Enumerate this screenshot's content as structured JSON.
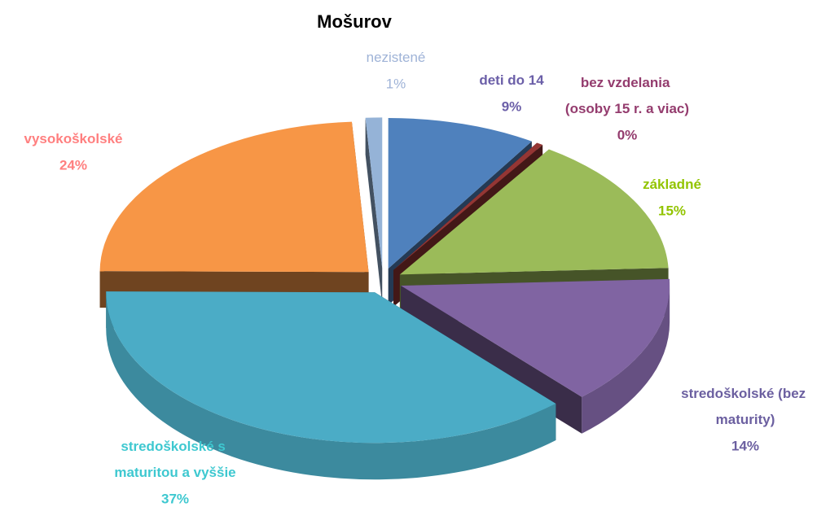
{
  "chart_data": {
    "type": "pie3d",
    "title": "Mošurov",
    "categories": [
      "deti do 14 r.",
      "bez vzdelania (osoby 15 r. a viac)",
      "základné",
      "stredoškolské (bez maturity)",
      "stredoškolské s maturitou a vyššie",
      "vysokoškolské",
      "nezistené"
    ],
    "values": [
      9,
      0.4,
      15,
      14,
      37,
      24,
      1
    ],
    "value_labels": [
      "9%",
      "0%",
      "15%",
      "14%",
      "37%",
      "24%",
      "1%"
    ],
    "colors": [
      "#4f81bd",
      "#943634",
      "#9bbb59",
      "#8064a2",
      "#4bacc6",
      "#f79646",
      "#95b3d7"
    ],
    "label_colors": [
      "#6b5fa8",
      "#943c6e",
      "#92c400",
      "#6b5fa0",
      "#3ec8d0",
      "#ff7f7f",
      "#9fb3d7"
    ]
  }
}
